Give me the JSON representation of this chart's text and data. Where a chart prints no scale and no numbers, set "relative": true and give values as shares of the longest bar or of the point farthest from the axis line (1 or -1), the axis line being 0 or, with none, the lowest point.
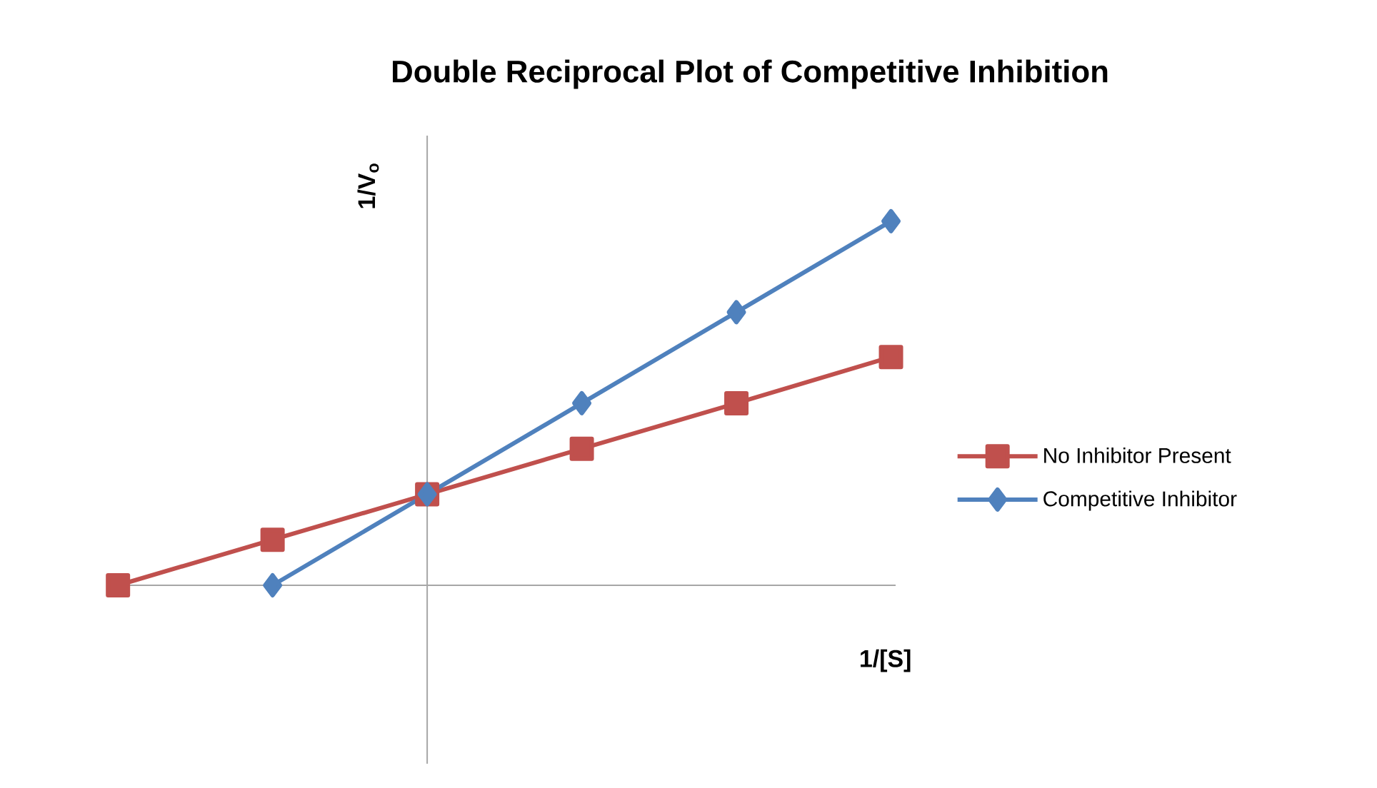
{
  "chart_data": {
    "type": "line",
    "title": "Double Reciprocal Plot of Competitive Inhibition",
    "xlabel": "1/[S]",
    "ylabel": "1/V$_{o}$",
    "relative": true,
    "categories": [
      null,
      null,
      null,
      null,
      null,
      null
    ],
    "legend": "right",
    "line_style": "solid",
    "series": [
      {
        "name": "No Inhibitor Present",
        "color": "#c0504d",
        "marker": "square",
        "values": [
          0,
          0.125,
          0.25,
          0.375,
          0.5,
          0.627
        ]
      },
      {
        "name": "Competitive Inhibitor",
        "color": "#4f81bd",
        "marker": "diamond",
        "values": [
          null,
          0,
          0.25,
          0.5,
          0.75,
          1
        ]
      }
    ]
  }
}
